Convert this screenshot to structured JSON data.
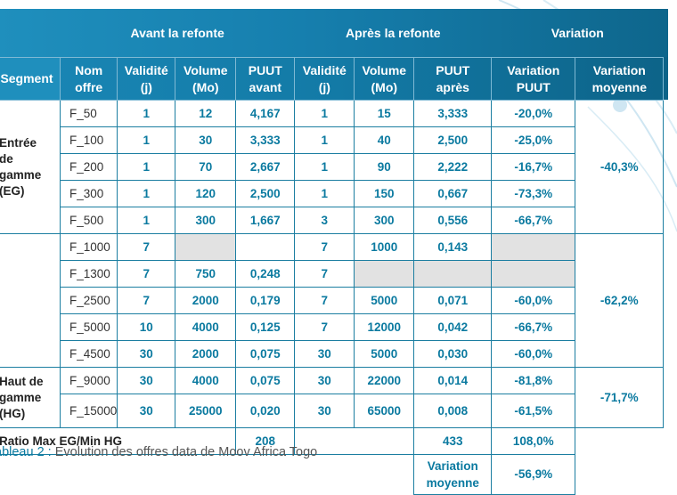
{
  "header": {
    "avant": "Avant la refonte",
    "apres": "Après la refonte",
    "variation": "Variation"
  },
  "columns": {
    "segment": "Segment",
    "nom_offre": [
      "Nom",
      "offre"
    ],
    "validite": [
      "Validité",
      "(j)"
    ],
    "volume": [
      "Volume",
      "(Mo)"
    ],
    "puut_avant": [
      "PUUT",
      "avant"
    ],
    "validite_apres": [
      "Validité",
      "(j)"
    ],
    "volume_apres": [
      "Volume",
      "(Mo)"
    ],
    "puut_apres": [
      "PUUT",
      "après"
    ],
    "variation_puut": [
      "Variation",
      "PUUT"
    ],
    "variation_moyenne": [
      "Variation",
      "moyenne"
    ]
  },
  "segments": {
    "eg": [
      "Entrée",
      "de",
      "gamme",
      "(EG)"
    ],
    "hg": [
      "Haut de",
      "gamme",
      "(HG)"
    ]
  },
  "rows": [
    {
      "offre": "F_50",
      "val_av": "1",
      "vol_av": "12",
      "puut_av": "4,167",
      "val_ap": "1",
      "vol_ap": "15",
      "puut_ap": "3,333",
      "var": "-20,0%"
    },
    {
      "offre": "F_100",
      "val_av": "1",
      "vol_av": "30",
      "puut_av": "3,333",
      "val_ap": "1",
      "vol_ap": "40",
      "puut_ap": "2,500",
      "var": "-25,0%"
    },
    {
      "offre": "F_200",
      "val_av": "1",
      "vol_av": "70",
      "puut_av": "2,667",
      "val_ap": "1",
      "vol_ap": "90",
      "puut_ap": "2,222",
      "var": "-16,7%"
    },
    {
      "offre": "F_300",
      "val_av": "1",
      "vol_av": "120",
      "puut_av": "2,500",
      "val_ap": "1",
      "vol_ap": "150",
      "puut_ap": "0,667",
      "var": "-73,3%"
    },
    {
      "offre": "F_500",
      "val_av": "1",
      "vol_av": "300",
      "puut_av": "1,667",
      "val_ap": "3",
      "vol_ap": "300",
      "puut_ap": "0,556",
      "var": "-66,7%"
    },
    {
      "offre": "F_1000",
      "val_av": "7",
      "vol_av": "",
      "puut_av": "",
      "val_ap": "7",
      "vol_ap": "1000",
      "puut_ap": "0,143",
      "var": ""
    },
    {
      "offre": "F_1300",
      "val_av": "7",
      "vol_av": "750",
      "puut_av": "0,248",
      "val_ap": "7",
      "vol_ap": "",
      "puut_ap": "",
      "var": ""
    },
    {
      "offre": "F_2500",
      "val_av": "7",
      "vol_av": "2000",
      "puut_av": "0,179",
      "val_ap": "7",
      "vol_ap": "5000",
      "puut_ap": "0,071",
      "var": "-60,0%"
    },
    {
      "offre": "F_5000",
      "val_av": "10",
      "vol_av": "4000",
      "puut_av": "0,125",
      "val_ap": "7",
      "vol_ap": "12000",
      "puut_ap": "0,042",
      "var": "-66,7%"
    },
    {
      "offre": "F_4500",
      "val_av": "30",
      "vol_av": "2000",
      "puut_av": "0,075",
      "val_ap": "30",
      "vol_ap": "5000",
      "puut_ap": "0,030",
      "var": "-60,0%"
    },
    {
      "offre": "F_9000",
      "val_av": "30",
      "vol_av": "4000",
      "puut_av": "0,075",
      "val_ap": "30",
      "vol_ap": "22000",
      "puut_ap": "0,014",
      "var": "-81,8%"
    },
    {
      "offre": "F_15000",
      "val_av": "30",
      "vol_av": "25000",
      "puut_av": "0,020",
      "val_ap": "30",
      "vol_ap": "65000",
      "puut_ap": "0,008",
      "var": "-61,5%"
    }
  ],
  "avg": {
    "eg": "-40,3%",
    "mid": "-62,2%",
    "hg": "-71,7%"
  },
  "ratio": {
    "label": "Ratio Max EG/Min HG",
    "avant": "208",
    "apres": "433",
    "var": "108,0%"
  },
  "variation_moyenne_row": {
    "label": [
      "Variation",
      "moyenne"
    ],
    "value": "-56,9%"
  },
  "caption": {
    "label": "ableau 2 :",
    "text": " Evolution des offres data de Moov Africa Togo"
  }
}
